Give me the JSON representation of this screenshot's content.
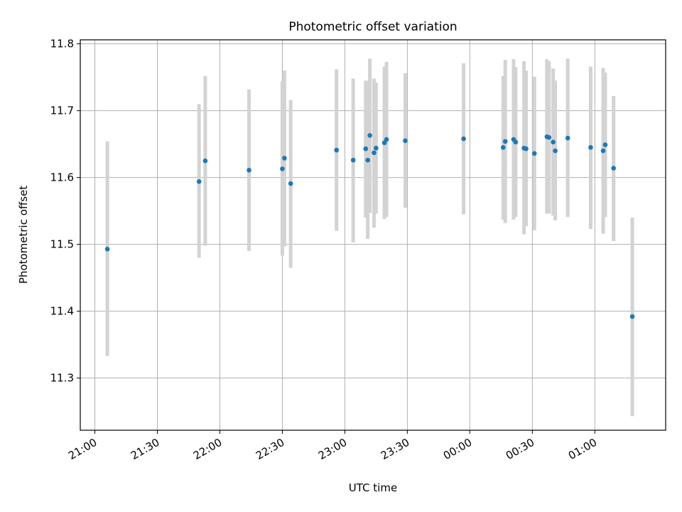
{
  "chart_data": {
    "type": "scatter",
    "title": "Photometric offset variation",
    "xlabel": "UTC time",
    "ylabel": "Photometric offset",
    "xlim": [
      "20:53",
      "01:34"
    ],
    "ylim": [
      11.222,
      11.806
    ],
    "grid": true,
    "x_ticks": [
      "21:00",
      "21:30",
      "22:00",
      "22:30",
      "23:00",
      "23:30",
      "00:00",
      "00:30",
      "01:00"
    ],
    "y_ticks": [
      "11.3",
      "11.4",
      "11.5",
      "11.6",
      "11.7",
      "11.8"
    ],
    "series": [
      {
        "marker_color": "#1f77b4",
        "errorbar_color": "#d3d3d3",
        "points": [
          {
            "t": "21:06",
            "y": 11.493,
            "lo": 11.333,
            "hi": 11.654
          },
          {
            "t": "21:50",
            "y": 11.594,
            "lo": 11.48,
            "hi": 11.71
          },
          {
            "t": "21:53",
            "y": 11.625,
            "lo": 11.498,
            "hi": 11.752
          },
          {
            "t": "22:14",
            "y": 11.611,
            "lo": 11.49,
            "hi": 11.732
          },
          {
            "t": "22:30",
            "y": 11.613,
            "lo": 11.483,
            "hi": 11.744
          },
          {
            "t": "22:31",
            "y": 11.629,
            "lo": 11.497,
            "hi": 11.76
          },
          {
            "t": "22:34",
            "y": 11.591,
            "lo": 11.465,
            "hi": 11.716
          },
          {
            "t": "22:56",
            "y": 11.641,
            "lo": 11.52,
            "hi": 11.762
          },
          {
            "t": "23:04",
            "y": 11.626,
            "lo": 11.503,
            "hi": 11.748
          },
          {
            "t": "23:10",
            "y": 11.643,
            "lo": 11.54,
            "hi": 11.745
          },
          {
            "t": "23:11",
            "y": 11.626,
            "lo": 11.508,
            "hi": 11.745
          },
          {
            "t": "23:12",
            "y": 11.663,
            "lo": 11.547,
            "hi": 11.778
          },
          {
            "t": "23:14",
            "y": 11.637,
            "lo": 11.525,
            "hi": 11.748
          },
          {
            "t": "23:15",
            "y": 11.644,
            "lo": 11.546,
            "hi": 11.742
          },
          {
            "t": "23:19",
            "y": 11.652,
            "lo": 11.538,
            "hi": 11.766
          },
          {
            "t": "23:20",
            "y": 11.657,
            "lo": 11.541,
            "hi": 11.773
          },
          {
            "t": "23:29",
            "y": 11.655,
            "lo": 11.555,
            "hi": 11.756
          },
          {
            "t": "23:57",
            "y": 11.658,
            "lo": 11.545,
            "hi": 11.771
          },
          {
            "t": "00:16",
            "y": 11.645,
            "lo": 11.537,
            "hi": 11.752
          },
          {
            "t": "00:17",
            "y": 11.654,
            "lo": 11.532,
            "hi": 11.776
          },
          {
            "t": "00:21",
            "y": 11.657,
            "lo": 11.537,
            "hi": 11.777
          },
          {
            "t": "00:22",
            "y": 11.653,
            "lo": 11.541,
            "hi": 11.765
          },
          {
            "t": "00:26",
            "y": 11.644,
            "lo": 11.515,
            "hi": 11.774
          },
          {
            "t": "00:27",
            "y": 11.643,
            "lo": 11.527,
            "hi": 11.76
          },
          {
            "t": "00:31",
            "y": 11.636,
            "lo": 11.521,
            "hi": 11.751
          },
          {
            "t": "00:37",
            "y": 11.661,
            "lo": 11.546,
            "hi": 11.777
          },
          {
            "t": "00:38",
            "y": 11.66,
            "lo": 11.546,
            "hi": 11.774
          },
          {
            "t": "00:40",
            "y": 11.653,
            "lo": 11.543,
            "hi": 11.763
          },
          {
            "t": "00:41",
            "y": 11.64,
            "lo": 11.536,
            "hi": 11.745
          },
          {
            "t": "00:47",
            "y": 11.659,
            "lo": 11.541,
            "hi": 11.778
          },
          {
            "t": "00:58",
            "y": 11.645,
            "lo": 11.523,
            "hi": 11.766
          },
          {
            "t": "01:04",
            "y": 11.64,
            "lo": 11.516,
            "hi": 11.764
          },
          {
            "t": "01:05",
            "y": 11.649,
            "lo": 11.541,
            "hi": 11.757
          },
          {
            "t": "01:09",
            "y": 11.614,
            "lo": 11.505,
            "hi": 11.722
          },
          {
            "t": "01:18",
            "y": 11.392,
            "lo": 11.243,
            "hi": 11.54
          }
        ]
      }
    ]
  }
}
